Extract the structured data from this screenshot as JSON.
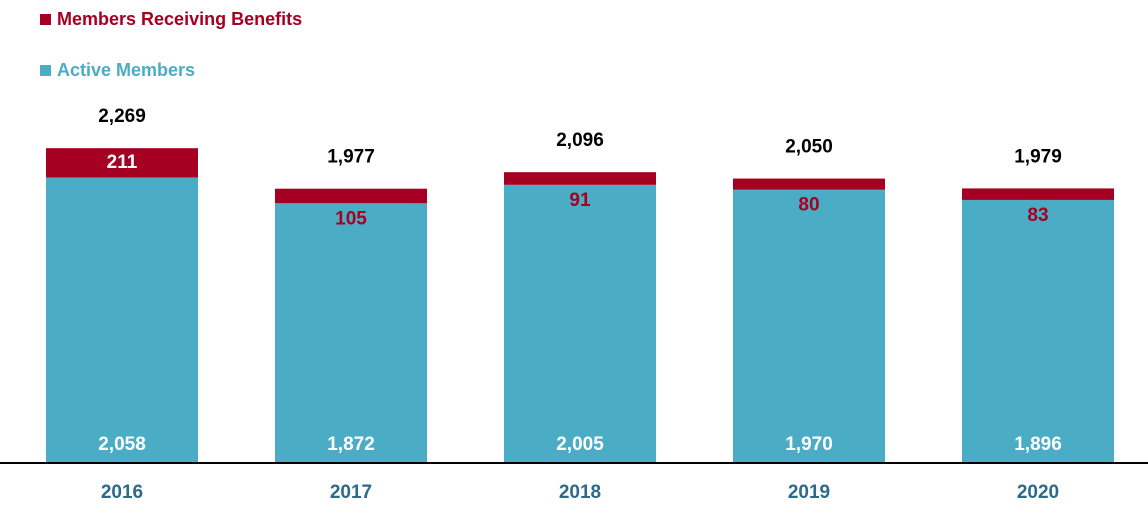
{
  "chart_data": {
    "type": "stacked-bar",
    "categories": [
      "2016",
      "2017",
      "2018",
      "2019",
      "2020"
    ],
    "series": [
      {
        "name": "Active Members",
        "color": "#4bacc6",
        "values": [
          2058,
          1872,
          2005,
          1970,
          1896
        ],
        "value_labels": [
          "2,058",
          "1,872",
          "2,005",
          "1,970",
          "1,896"
        ]
      },
      {
        "name": "Members Receiving Benefits",
        "color": "#a50021",
        "values": [
          211,
          105,
          91,
          80,
          83
        ]
      }
    ],
    "totals": {
      "values": [
        2269,
        1977,
        2096,
        2050,
        1979
      ],
      "value_labels": [
        "2,269",
        "1,977",
        "2,096",
        "2,050",
        "1,979"
      ]
    },
    "ylim": [
      0,
      2400
    ],
    "legend": "top-left"
  }
}
